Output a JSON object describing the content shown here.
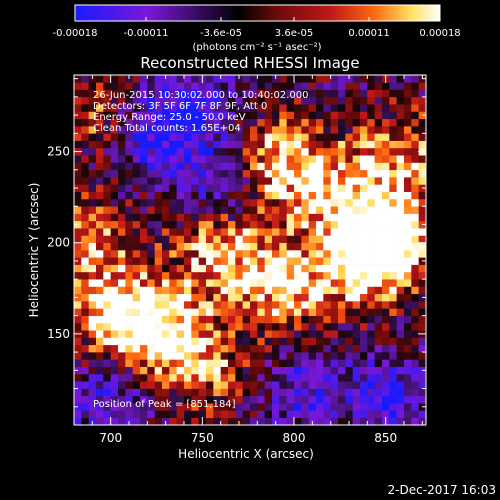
{
  "chart_data": {
    "type": "heatmap",
    "title": "Reconstructed RHESSI Image",
    "xlabel": "Heliocentric X (arcsec)",
    "ylabel": "Heliocentric Y (arcsec)",
    "xlim": [
      680,
      872
    ],
    "ylim": [
      100,
      292
    ],
    "x_ticks": [
      700,
      750,
      800,
      850
    ],
    "y_ticks": [
      150,
      200,
      250
    ],
    "colorbar": {
      "ticks": [
        "-0.00018",
        "-0.00011",
        "-3.6e-05",
        "3.6e-05",
        "0.00011",
        "0.00018"
      ],
      "range": [
        -0.00018,
        0.00018
      ],
      "unit_label": "(photons cm⁻² s⁻¹ asec⁻²)",
      "colors": [
        "#1a1aff",
        "#7a17d8",
        "#000000",
        "#6a0a0a",
        "#c01818",
        "#ff6a10",
        "#ffe060",
        "#ffffff"
      ]
    },
    "annotations": {
      "time": "26-Jun-2015 10:30:02.000 to 10:40:02.000",
      "detectors": "Detectors: 3F 5F 6F 7F 8F 9F, Att 0",
      "energy": "Energy Range: 25.0 - 50.0 keV",
      "clean": "Clean     Total counts: 1.65E+04",
      "peak": "Position of Peak = [851,184]"
    },
    "grid": false,
    "hotspots": [
      {
        "x": 851,
        "y": 205,
        "weight": 1.0
      },
      {
        "x": 838,
        "y": 190,
        "weight": 0.9
      },
      {
        "x": 790,
        "y": 245,
        "weight": 0.8
      },
      {
        "x": 795,
        "y": 175,
        "weight": 0.8
      },
      {
        "x": 760,
        "y": 195,
        "weight": 0.75
      },
      {
        "x": 705,
        "y": 160,
        "weight": 0.85
      },
      {
        "x": 730,
        "y": 150,
        "weight": 0.8
      },
      {
        "x": 690,
        "y": 200,
        "weight": 0.6
      },
      {
        "x": 860,
        "y": 250,
        "weight": 0.6
      },
      {
        "x": 820,
        "y": 230,
        "weight": 0.65
      },
      {
        "x": 755,
        "y": 130,
        "weight": 0.45
      },
      {
        "x": 695,
        "y": 270,
        "weight": 0.55
      }
    ],
    "coldspots": [
      {
        "x": 720,
        "y": 260,
        "weight": 0.9
      },
      {
        "x": 745,
        "y": 275,
        "weight": 0.8
      },
      {
        "x": 760,
        "y": 235,
        "weight": 0.7
      },
      {
        "x": 805,
        "y": 120,
        "weight": 0.6
      },
      {
        "x": 850,
        "y": 115,
        "weight": 0.7
      },
      {
        "x": 700,
        "y": 115,
        "weight": 0.6
      }
    ]
  },
  "footer": {
    "date": "2-Dec-2017 16:03"
  }
}
